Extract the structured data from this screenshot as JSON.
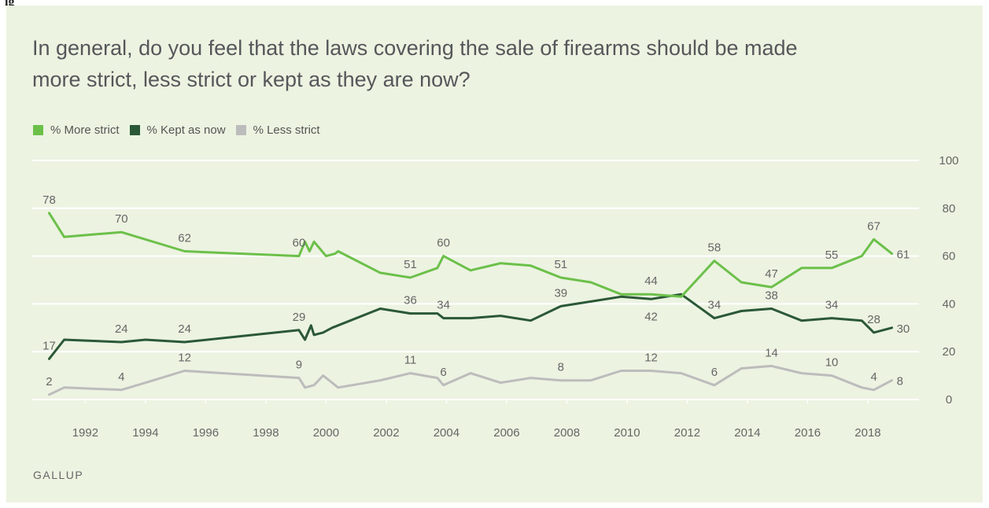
{
  "top_fragment": "ig",
  "chart_data": {
    "type": "line",
    "title": "In general, do you feel that the laws covering the sale of firearms should be made more strict, less strict or kept as they are now?",
    "source": "GALLUP",
    "xlim": [
      1990.5,
      2019.7
    ],
    "ylim": [
      0,
      100
    ],
    "yticks": [
      0,
      20,
      40,
      60,
      80,
      100
    ],
    "xticks": [
      1992,
      1994,
      1996,
      1998,
      2000,
      2002,
      2004,
      2006,
      2008,
      2010,
      2012,
      2014,
      2016,
      2018
    ],
    "grid": true,
    "y_axis_side": "right",
    "legend_position": "top-left",
    "series": [
      {
        "name": "% More strict",
        "color": "#6cc04a",
        "points": [
          [
            1990.8,
            78
          ],
          [
            1991.3,
            68
          ],
          [
            1993.2,
            70
          ],
          [
            1995.3,
            62
          ],
          [
            1999.1,
            60
          ],
          [
            1999.3,
            66
          ],
          [
            1999.45,
            62
          ],
          [
            1999.6,
            66
          ],
          [
            1999.8,
            63
          ],
          [
            2000.0,
            60
          ],
          [
            2000.3,
            61
          ],
          [
            2000.4,
            62
          ],
          [
            2001.8,
            53
          ],
          [
            2002.8,
            51
          ],
          [
            2003.7,
            55
          ],
          [
            2003.9,
            60
          ],
          [
            2004.8,
            54
          ],
          [
            2005.8,
            57
          ],
          [
            2006.8,
            56
          ],
          [
            2007.8,
            51
          ],
          [
            2008.8,
            49
          ],
          [
            2009.8,
            44
          ],
          [
            2010.8,
            44
          ],
          [
            2011.8,
            43
          ],
          [
            2012.9,
            58
          ],
          [
            2013.8,
            49
          ],
          [
            2014.8,
            47
          ],
          [
            2015.8,
            55
          ],
          [
            2016.8,
            55
          ],
          [
            2017.8,
            60
          ],
          [
            2018.2,
            67
          ],
          [
            2018.8,
            61
          ]
        ],
        "labels": [
          {
            "x": 1990.8,
            "y": 78,
            "text": "78",
            "pos": "above"
          },
          {
            "x": 1993.2,
            "y": 70,
            "text": "70",
            "pos": "above"
          },
          {
            "x": 1995.3,
            "y": 62,
            "text": "62",
            "pos": "above"
          },
          {
            "x": 1999.1,
            "y": 60,
            "text": "60",
            "pos": "above"
          },
          {
            "x": 2002.8,
            "y": 51,
            "text": "51",
            "pos": "above"
          },
          {
            "x": 2003.9,
            "y": 60,
            "text": "60",
            "pos": "above"
          },
          {
            "x": 2007.8,
            "y": 51,
            "text": "51",
            "pos": "above"
          },
          {
            "x": 2010.8,
            "y": 44,
            "text": "44",
            "pos": "above"
          },
          {
            "x": 2012.9,
            "y": 58,
            "text": "58",
            "pos": "above"
          },
          {
            "x": 2014.8,
            "y": 47,
            "text": "47",
            "pos": "above"
          },
          {
            "x": 2016.8,
            "y": 55,
            "text": "55",
            "pos": "above"
          },
          {
            "x": 2018.2,
            "y": 67,
            "text": "67",
            "pos": "above"
          },
          {
            "x": 2018.8,
            "y": 61,
            "text": "61",
            "pos": "right"
          }
        ]
      },
      {
        "name": "% Kept as now",
        "color": "#2b5836",
        "points": [
          [
            1990.8,
            17
          ],
          [
            1991.3,
            25
          ],
          [
            1993.2,
            24
          ],
          [
            1994.0,
            25
          ],
          [
            1995.3,
            24
          ],
          [
            1999.1,
            29
          ],
          [
            1999.3,
            25
          ],
          [
            1999.5,
            31
          ],
          [
            1999.6,
            27
          ],
          [
            1999.9,
            28
          ],
          [
            2000.2,
            30
          ],
          [
            2000.4,
            31
          ],
          [
            2001.8,
            38
          ],
          [
            2002.8,
            36
          ],
          [
            2003.7,
            36
          ],
          [
            2003.9,
            34
          ],
          [
            2004.8,
            34
          ],
          [
            2005.8,
            35
          ],
          [
            2006.8,
            33
          ],
          [
            2007.8,
            39
          ],
          [
            2008.8,
            41
          ],
          [
            2009.8,
            43
          ],
          [
            2010.8,
            42
          ],
          [
            2011.8,
            44
          ],
          [
            2012.9,
            34
          ],
          [
            2013.8,
            37
          ],
          [
            2014.8,
            38
          ],
          [
            2015.8,
            33
          ],
          [
            2016.8,
            34
          ],
          [
            2017.8,
            33
          ],
          [
            2018.2,
            28
          ],
          [
            2018.8,
            30
          ]
        ],
        "labels": [
          {
            "x": 1990.8,
            "y": 17,
            "text": "17",
            "pos": "above"
          },
          {
            "x": 1993.2,
            "y": 24,
            "text": "24",
            "pos": "above"
          },
          {
            "x": 1995.3,
            "y": 24,
            "text": "24",
            "pos": "above"
          },
          {
            "x": 1999.1,
            "y": 29,
            "text": "29",
            "pos": "above"
          },
          {
            "x": 2002.8,
            "y": 36,
            "text": "36",
            "pos": "above"
          },
          {
            "x": 2003.9,
            "y": 34,
            "text": "34",
            "pos": "above"
          },
          {
            "x": 2007.8,
            "y": 39,
            "text": "39",
            "pos": "above"
          },
          {
            "x": 2010.8,
            "y": 42,
            "text": "42",
            "pos": "below"
          },
          {
            "x": 2012.9,
            "y": 34,
            "text": "34",
            "pos": "above"
          },
          {
            "x": 2014.8,
            "y": 38,
            "text": "38",
            "pos": "above"
          },
          {
            "x": 2016.8,
            "y": 34,
            "text": "34",
            "pos": "above"
          },
          {
            "x": 2018.2,
            "y": 28,
            "text": "28",
            "pos": "above"
          },
          {
            "x": 2018.8,
            "y": 30,
            "text": "30",
            "pos": "right"
          }
        ]
      },
      {
        "name": "% Less strict",
        "color": "#bcbcbc",
        "points": [
          [
            1990.8,
            2
          ],
          [
            1991.3,
            5
          ],
          [
            1993.2,
            4
          ],
          [
            1994.0,
            7
          ],
          [
            1995.3,
            12
          ],
          [
            1999.1,
            9
          ],
          [
            1999.3,
            5
          ],
          [
            1999.6,
            6
          ],
          [
            1999.9,
            10
          ],
          [
            2000.2,
            7
          ],
          [
            2000.4,
            5
          ],
          [
            2001.8,
            8
          ],
          [
            2002.8,
            11
          ],
          [
            2003.7,
            9
          ],
          [
            2003.9,
            6
          ],
          [
            2004.8,
            11
          ],
          [
            2005.8,
            7
          ],
          [
            2006.8,
            9
          ],
          [
            2007.8,
            8
          ],
          [
            2008.8,
            8
          ],
          [
            2009.8,
            12
          ],
          [
            2010.8,
            12
          ],
          [
            2011.8,
            11
          ],
          [
            2012.9,
            6
          ],
          [
            2013.8,
            13
          ],
          [
            2014.8,
            14
          ],
          [
            2015.8,
            11
          ],
          [
            2016.8,
            10
          ],
          [
            2017.8,
            5
          ],
          [
            2018.2,
            4
          ],
          [
            2018.8,
            8
          ]
        ],
        "labels": [
          {
            "x": 1990.8,
            "y": 2,
            "text": "2",
            "pos": "above"
          },
          {
            "x": 1993.2,
            "y": 4,
            "text": "4",
            "pos": "above"
          },
          {
            "x": 1995.3,
            "y": 12,
            "text": "12",
            "pos": "above"
          },
          {
            "x": 1999.1,
            "y": 9,
            "text": "9",
            "pos": "above"
          },
          {
            "x": 2002.8,
            "y": 11,
            "text": "11",
            "pos": "above"
          },
          {
            "x": 2003.9,
            "y": 6,
            "text": "6",
            "pos": "above"
          },
          {
            "x": 2007.8,
            "y": 8,
            "text": "8",
            "pos": "above"
          },
          {
            "x": 2010.8,
            "y": 12,
            "text": "12",
            "pos": "above"
          },
          {
            "x": 2012.9,
            "y": 6,
            "text": "6",
            "pos": "above"
          },
          {
            "x": 2014.8,
            "y": 14,
            "text": "14",
            "pos": "above"
          },
          {
            "x": 2016.8,
            "y": 10,
            "text": "10",
            "pos": "above"
          },
          {
            "x": 2018.2,
            "y": 4,
            "text": "4",
            "pos": "above"
          },
          {
            "x": 2018.8,
            "y": 8,
            "text": "8",
            "pos": "right"
          }
        ]
      }
    ]
  }
}
